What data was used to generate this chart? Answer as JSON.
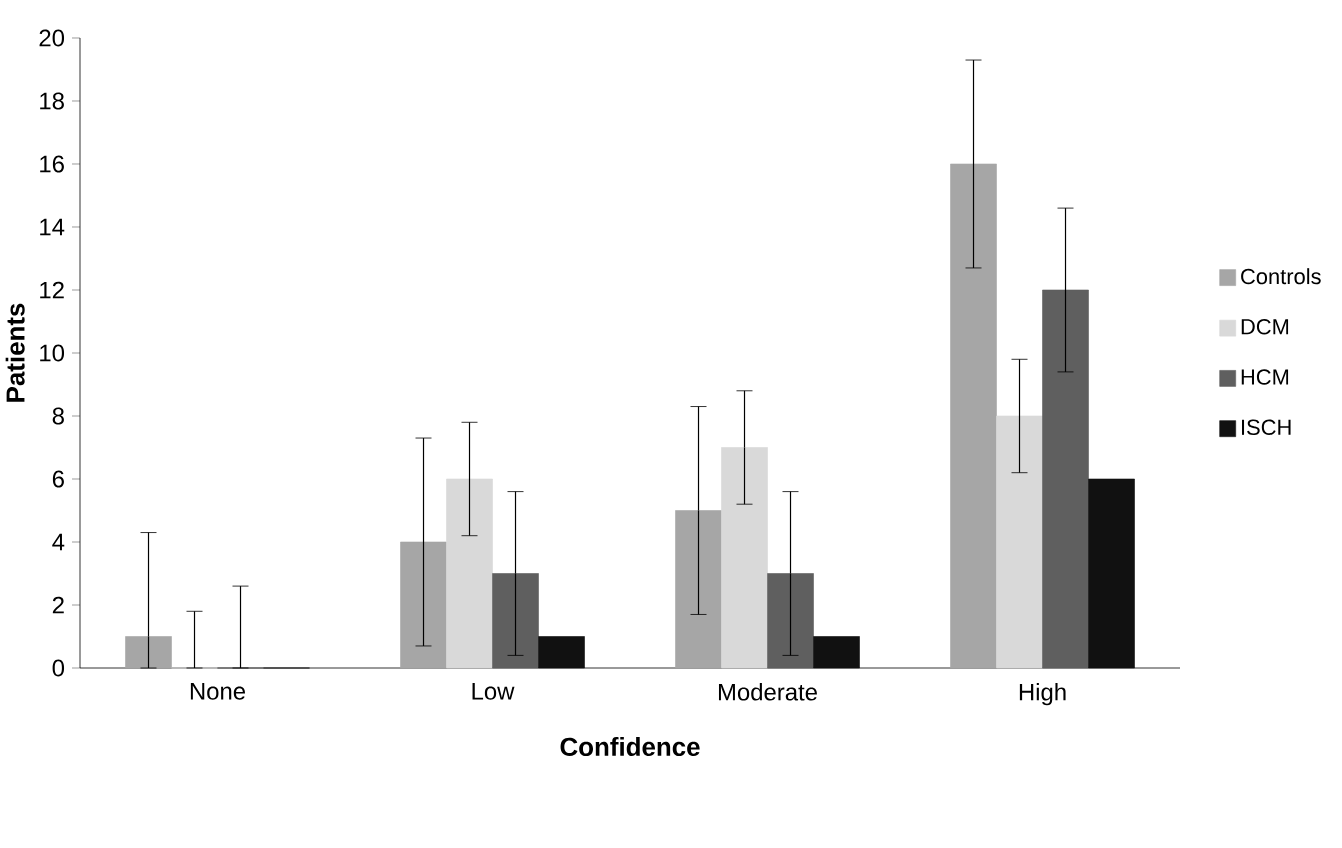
{
  "chart_data": {
    "type": "bar",
    "xlabel": "Confidence",
    "ylabel": "Patients",
    "categories": [
      "None",
      "Low",
      "Moderate",
      "High"
    ],
    "series": [
      {
        "name": "Controls",
        "color": "#a6a6a6",
        "values": [
          1,
          4,
          5,
          16
        ],
        "errors": [
          [
            0,
            4.3
          ],
          3.3,
          3.3,
          3.3
        ]
      },
      {
        "name": "DCM",
        "color": "#d9d9d9",
        "values": [
          0,
          6,
          7,
          8
        ],
        "errors": [
          [
            0,
            1.8
          ],
          1.8,
          1.8,
          1.8
        ]
      },
      {
        "name": "HCM",
        "color": "#5f5f5f",
        "values": [
          0,
          3,
          3,
          12
        ],
        "errors": [
          [
            0,
            2.6
          ],
          2.6,
          2.6,
          2.6
        ]
      },
      {
        "name": "ISCH",
        "color": "#111111",
        "values": [
          0,
          1,
          1,
          6
        ]
      }
    ],
    "ylim": [
      0,
      20
    ],
    "yticks": [
      0,
      2,
      4,
      6,
      8,
      10,
      12,
      14,
      16,
      18,
      20
    ],
    "grid": false,
    "legend": "right"
  }
}
